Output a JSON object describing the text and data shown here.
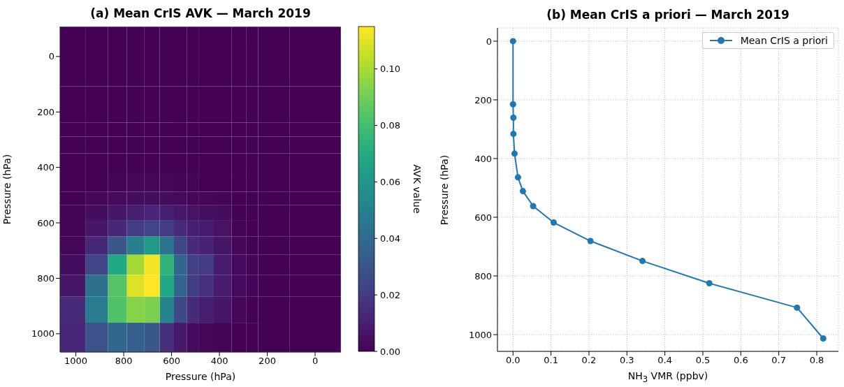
{
  "chart_data": [
    {
      "type": "heatmap",
      "title": "(a) Mean CrIS AVK — March 2019",
      "xlabel": "Pressure (hPa)",
      "ylabel": "Pressure (hPa)",
      "clabel": "AVK value",
      "x": [
        0,
        215,
        261,
        316,
        383,
        464,
        511,
        562,
        618,
        681,
        749,
        825,
        908,
        1013
      ],
      "y": [
        0,
        215,
        261,
        316,
        383,
        464,
        511,
        562,
        618,
        681,
        749,
        825,
        908,
        1013
      ],
      "cells": [
        [
          0,
          0,
          0,
          0,
          0,
          0,
          0,
          0,
          0,
          0,
          0,
          0,
          0,
          0
        ],
        [
          0,
          0,
          0,
          0,
          0,
          0,
          0,
          0,
          0,
          0,
          0,
          0,
          0,
          0
        ],
        [
          0,
          0,
          0,
          0,
          0,
          0,
          0,
          0,
          0,
          0,
          0,
          0,
          0,
          0
        ],
        [
          0,
          0,
          0,
          0,
          0,
          0,
          0,
          0,
          0,
          0,
          0,
          0,
          0,
          0
        ],
        [
          0,
          0,
          0,
          0,
          0,
          0,
          0,
          0,
          0,
          0,
          0,
          0,
          0,
          0
        ],
        [
          0,
          0,
          0,
          0,
          0,
          0,
          0.001,
          0.001,
          0.002,
          0.002,
          0.002,
          0.001,
          0,
          0
        ],
        [
          0,
          0,
          0,
          0,
          0.001,
          0.002,
          0.002,
          0.003,
          0.004,
          0.004,
          0.004,
          0.003,
          0.002,
          0
        ],
        [
          0,
          0,
          0,
          0,
          0.004,
          0.005,
          0.006,
          0.008,
          0.01,
          0.012,
          0.01,
          0.007,
          0.004,
          0.001
        ],
        [
          0,
          0,
          0,
          0.001,
          0.006,
          0.009,
          0.01,
          0.014,
          0.02,
          0.023,
          0.02,
          0.013,
          0.007,
          0.001
        ],
        [
          0,
          0,
          0,
          0.002,
          0.007,
          0.011,
          0.014,
          0.024,
          0.044,
          0.062,
          0.049,
          0.031,
          0.013,
          0.002
        ],
        [
          0,
          0,
          0.001,
          0.003,
          0.009,
          0.02,
          0.022,
          0.038,
          0.074,
          0.113,
          0.099,
          0.069,
          0.023,
          0.004
        ],
        [
          0,
          0,
          0.001,
          0.003,
          0.009,
          0.016,
          0.021,
          0.037,
          0.069,
          0.115,
          0.109,
          0.084,
          0.043,
          0.007
        ],
        [
          0,
          0,
          0,
          0.002,
          0.007,
          0.01,
          0.014,
          0.025,
          0.052,
          0.092,
          0.094,
          0.083,
          0.048,
          0.014
        ],
        [
          0,
          0,
          0,
          0,
          0.001,
          0.002,
          0.003,
          0.008,
          0.015,
          0.031,
          0.035,
          0.038,
          0.029,
          0.012
        ]
      ],
      "xlim": [
        1066,
        -108
      ],
      "xticks": [
        1000,
        800,
        600,
        400,
        200,
        0
      ],
      "ylim": [
        1066,
        -108
      ],
      "yticks": [
        0,
        200,
        400,
        600,
        800,
        1000
      ],
      "clim": [
        0,
        0.115
      ],
      "cticks": [
        {
          "value": 0,
          "label": "0.00"
        },
        {
          "value": 0.02,
          "label": "0.02"
        },
        {
          "value": 0.04,
          "label": "0.04"
        },
        {
          "value": 0.06,
          "label": "0.06"
        },
        {
          "value": 0.08,
          "label": "0.08"
        },
        {
          "value": 0.1,
          "label": "0.10"
        }
      ]
    },
    {
      "type": "line",
      "title": "(b) Mean CrIS a priori — March 2019",
      "xlabel": "NH$_{3}$ VMR (ppbv)",
      "ylabel": "Pressure (hPa)",
      "series": [
        {
          "name": "Mean CrIS a priori",
          "color": "#1f77b4",
          "x": [
            0,
            0,
            0.001,
            0.001,
            0.004,
            0.013,
            0.026,
            0.053,
            0.107,
            0.204,
            0.341,
            0.517,
            0.748,
            0.817
          ],
          "values": [
            0,
            215,
            261,
            316,
            383,
            464,
            511,
            562,
            618,
            681,
            749,
            825,
            908,
            1013
          ]
        }
      ],
      "xlim": [
        -0.041,
        0.857
      ],
      "xticks": [
        {
          "value": 0,
          "label": "0.0"
        },
        {
          "value": 0.1,
          "label": "0.1"
        },
        {
          "value": 0.2,
          "label": "0.2"
        },
        {
          "value": 0.3,
          "label": "0.3"
        },
        {
          "value": 0.4,
          "label": "0.4"
        },
        {
          "value": 0.5,
          "label": "0.5"
        },
        {
          "value": 0.6,
          "label": "0.6"
        },
        {
          "value": 0.7,
          "label": "0.7"
        },
        {
          "value": 0.8,
          "label": "0.8"
        }
      ],
      "ylim": [
        1057,
        -45
      ],
      "yticks": [
        0,
        200,
        400,
        600,
        800,
        1000
      ],
      "grid": true,
      "legend": "top right",
      "marker": "circle",
      "line_style": "solid"
    }
  ]
}
